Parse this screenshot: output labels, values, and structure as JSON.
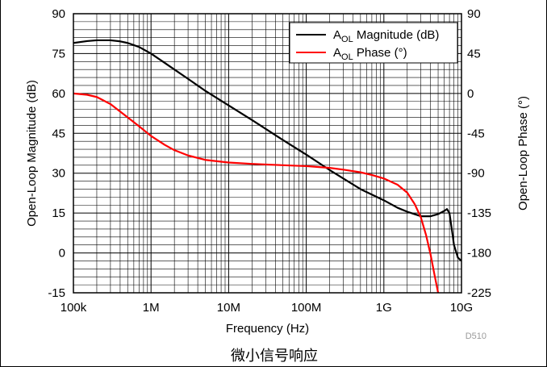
{
  "chart_data": {
    "type": "line",
    "xlabel": "Frequency (Hz)",
    "ylabel": "Open-Loop Magnitude (dB)",
    "y2label": "Open-Loop Phase (°)",
    "xscale": "log",
    "xlim": [
      100000,
      10000000000
    ],
    "ylim": [
      -15,
      90
    ],
    "y2lim": [
      -225,
      90
    ],
    "x_ticks": [
      100000,
      1000000,
      10000000,
      100000000,
      1000000000,
      10000000000
    ],
    "x_tick_labels": [
      "100k",
      "1M",
      "10M",
      "100M",
      "1G",
      "10G"
    ],
    "y_ticks": [
      -15,
      0,
      15,
      30,
      45,
      60,
      75,
      90
    ],
    "y_tick_labels": [
      "-15",
      "0",
      "15",
      "30",
      "45",
      "60",
      "75",
      "90"
    ],
    "y2_ticks": [
      -225,
      -180,
      -135,
      -90,
      -45,
      0,
      45,
      90
    ],
    "y2_tick_labels": [
      "-225",
      "-180",
      "-135",
      "-90",
      "-45",
      "0",
      "45",
      "90"
    ],
    "grid": true,
    "legend_position": "top-right",
    "series": [
      {
        "name_base": "A",
        "name_sub": "OL",
        "name_rest": " Magnitude (dB)",
        "color": "#000000",
        "axis": "left",
        "x": [
          100000,
          150000,
          200000,
          300000,
          400000,
          500000,
          700000,
          1000000,
          1500000,
          2000000,
          3000000,
          5000000,
          10000000,
          20000000,
          50000000,
          100000000,
          200000000,
          500000000,
          1000000000,
          1500000000,
          2000000000,
          3000000000,
          4000000000,
          5000000000,
          6000000000,
          6500000000,
          7000000000,
          7500000000,
          8000000000,
          9000000000,
          10000000000
        ],
        "y": [
          79,
          79.7,
          80,
          80,
          79.6,
          79,
          77.5,
          75,
          71.5,
          69,
          65.5,
          61,
          55.5,
          50,
          42.5,
          37,
          31.2,
          24,
          19.8,
          17,
          15.5,
          13.8,
          13.8,
          14.6,
          15.8,
          16.5,
          15,
          9,
          3,
          -1.8,
          -3
        ]
      },
      {
        "name_base": "A",
        "name_sub": "OL",
        "name_rest": " Phase (°)",
        "color": "#ff0000",
        "axis": "right",
        "x": [
          100000,
          150000,
          200000,
          300000,
          500000,
          700000,
          1000000,
          1500000,
          2000000,
          3000000,
          5000000,
          10000000,
          20000000,
          50000000,
          100000000,
          200000000,
          300000000,
          500000000,
          700000000,
          1000000000,
          1500000000,
          2000000000,
          2500000000,
          3000000000,
          3500000000,
          4000000000,
          4500000000,
          5000000000
        ],
        "y": [
          0,
          -1.5,
          -4,
          -12,
          -27,
          -37,
          -48,
          -58,
          -64,
          -70,
          -75,
          -78,
          -79.5,
          -81,
          -82,
          -84,
          -86,
          -89,
          -92,
          -96,
          -103,
          -112,
          -125,
          -140,
          -160,
          -182,
          -205,
          -225
        ]
      }
    ]
  },
  "footnote": "D510",
  "caption": "微小信号响应"
}
